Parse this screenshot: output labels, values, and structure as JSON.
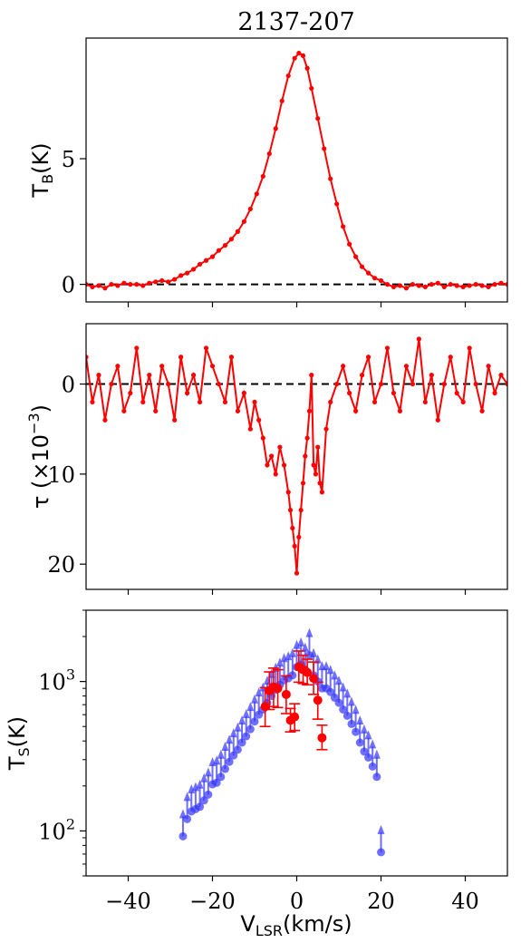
{
  "title": "2137-207",
  "xlabel": {
    "main": "V",
    "sub": "LSR",
    "rest": "(km/s)"
  },
  "xticks": [
    "−40",
    "−20",
    "0",
    "20",
    "40"
  ],
  "colors": {
    "emission": "#ff0000",
    "absorption": "#ff0000",
    "ts_limits": "#3333ff",
    "ts_detections": "#ff0000",
    "zero_line": "#000000"
  },
  "chart_data": [
    {
      "type": "line",
      "name": "brightness-temperature",
      "ylabel": {
        "main": "T",
        "sub": "B",
        "rest": "(K)"
      },
      "xlim": [
        -50,
        50
      ],
      "ylim": [
        -0.7,
        9.8
      ],
      "yticks": [
        "0",
        "5"
      ],
      "ytick_values": [
        0,
        5
      ],
      "zero_line": true,
      "series": [
        {
          "x": [
            -50,
            -48.5,
            -47,
            -45.5,
            -44,
            -42.5,
            -41,
            -39.5,
            -38,
            -36.5,
            -35,
            -33.5,
            -32,
            -30.5,
            -29,
            -27.5,
            -26,
            -24.5,
            -23,
            -21.5,
            -20,
            -18.5,
            -17,
            -15.5,
            -14,
            -12.5,
            -11,
            -9.5,
            -8,
            -6.5,
            -5,
            -3.5,
            -2,
            -0.5,
            0.5,
            1.5,
            2.5,
            3.5,
            5,
            6.5,
            8,
            9.5,
            11,
            12.5,
            14,
            15.5,
            17,
            18.5,
            20,
            21.5,
            23,
            24.5,
            26,
            27.5,
            29,
            30.5,
            32,
            33.5,
            35,
            36.5,
            38,
            39.5,
            41,
            42.5,
            44,
            45.5,
            47,
            48.5,
            50
          ],
          "y": [
            0.0,
            -0.1,
            -0.05,
            -0.15,
            0.0,
            -0.05,
            0.05,
            0.0,
            0.0,
            -0.05,
            0.05,
            0.1,
            0.15,
            0.1,
            0.2,
            0.35,
            0.45,
            0.6,
            0.8,
            0.95,
            1.1,
            1.35,
            1.55,
            1.8,
            2.1,
            2.5,
            3.0,
            3.6,
            4.3,
            5.2,
            6.2,
            7.3,
            8.3,
            9.0,
            9.2,
            9.1,
            8.6,
            7.8,
            6.6,
            5.4,
            4.2,
            3.2,
            2.3,
            1.6,
            1.1,
            0.7,
            0.45,
            0.25,
            0.15,
            0.0,
            -0.1,
            -0.05,
            -0.15,
            0.0,
            -0.05,
            -0.1,
            0.0,
            0.05,
            -0.1,
            0.0,
            -0.05,
            -0.1,
            -0.05,
            0.0,
            -0.05,
            -0.1,
            0.0,
            0.05,
            0.0
          ]
        }
      ]
    },
    {
      "type": "line",
      "name": "optical-depth",
      "ylabel": {
        "main": "τ (×10",
        "sup": "−3",
        "rest": ")"
      },
      "xlim": [
        -50,
        50
      ],
      "ylim": [
        22.8,
        -6.7
      ],
      "yticks": [
        "0",
        "10",
        "20"
      ],
      "ytick_values": [
        0,
        10,
        20
      ],
      "zero_line": true,
      "series": [
        {
          "x": [
            -50,
            -48.5,
            -47,
            -45.5,
            -44,
            -42.5,
            -41,
            -39.5,
            -38,
            -36.5,
            -35,
            -33.5,
            -32,
            -30.5,
            -29,
            -27.5,
            -26,
            -24.5,
            -23,
            -21.5,
            -20,
            -18.5,
            -17,
            -15.5,
            -14,
            -12.5,
            -11,
            -10,
            -9,
            -8,
            -7,
            -6,
            -5,
            -4,
            -3,
            -2,
            -1.5,
            -1,
            -0.5,
            0,
            0.5,
            1,
            1.5,
            2,
            2.5,
            3,
            3.5,
            4,
            4.5,
            5,
            5.5,
            6,
            7,
            8,
            9.5,
            11,
            12.5,
            14,
            15.5,
            17,
            18.5,
            20,
            21.5,
            23,
            24.5,
            26,
            27.5,
            29,
            30.5,
            32,
            33.5,
            35,
            36.5,
            38,
            39.5,
            41,
            42.5,
            44,
            45.5,
            47,
            48.5,
            50
          ],
          "y": [
            -3,
            2,
            -1,
            4,
            0,
            -2,
            3,
            1,
            -4,
            2,
            -1,
            3,
            -2,
            0,
            4,
            -3,
            1,
            -1,
            2,
            -4,
            -2,
            0,
            2,
            -3,
            3,
            1,
            5,
            2,
            4,
            6,
            9,
            8,
            10,
            7,
            9,
            12,
            14,
            16,
            18,
            21,
            17,
            14,
            11,
            8,
            6,
            3,
            -1,
            9,
            10,
            7,
            11,
            12,
            5,
            2,
            0,
            -2,
            1,
            3,
            -1,
            -3,
            2,
            0,
            -4,
            1,
            3,
            -2,
            0,
            -5,
            2,
            -1,
            4,
            0,
            -3,
            1,
            2,
            -4,
            0,
            3,
            -2,
            1,
            -1,
            0
          ]
        }
      ]
    },
    {
      "type": "scatter",
      "name": "spin-temperature",
      "ylabel": {
        "main": "T",
        "sub": "S",
        "rest": "(K)"
      },
      "xlim": [
        -50,
        50
      ],
      "ylim": [
        50,
        3000
      ],
      "yscale": "log",
      "yticks": [
        {
          "value": 100,
          "base": "10",
          "exp": "2"
        },
        {
          "value": 1000,
          "base": "10",
          "exp": "3"
        }
      ],
      "series": [
        {
          "name": "lower-limits",
          "x": [
            -27,
            -26,
            -25,
            -24,
            -23,
            -22,
            -21,
            -20,
            -19,
            -18,
            -17,
            -16,
            -15,
            -14,
            -13,
            -12,
            -11,
            -10,
            -9,
            -8,
            -7,
            -6,
            -5,
            -4,
            -3,
            -2,
            -1,
            0,
            1,
            2,
            3,
            4,
            5,
            6,
            7,
            8,
            9,
            10,
            11,
            12,
            13,
            14,
            15,
            16,
            17,
            18,
            19,
            20
          ],
          "y": [
            92,
            120,
            135,
            140,
            145,
            160,
            175,
            205,
            210,
            230,
            260,
            290,
            320,
            350,
            390,
            430,
            480,
            540,
            600,
            650,
            720,
            800,
            880,
            950,
            1020,
            1050,
            1100,
            1250,
            1300,
            1200,
            1500,
            1100,
            1000,
            900,
            900,
            850,
            780,
            720,
            650,
            590,
            520,
            460,
            390,
            340,
            310,
            270,
            230,
            72
          ]
        },
        {
          "name": "detections",
          "x": [
            -7.5,
            -6.5,
            -5.5,
            -4.5,
            -2.5,
            -1.5,
            -0.5,
            0.5,
            1.5,
            2.5,
            4,
            5,
            6
          ],
          "y": [
            680,
            870,
            920,
            900,
            820,
            550,
            580,
            1250,
            1200,
            1150,
            1050,
            750,
            420
          ],
          "err_lo": [
            180,
            220,
            240,
            230,
            210,
            90,
            110,
            260,
            230,
            200,
            230,
            190,
            70
          ],
          "err_hi": [
            230,
            290,
            310,
            300,
            270,
            110,
            130,
            350,
            300,
            260,
            300,
            240,
            90
          ]
        }
      ]
    }
  ]
}
